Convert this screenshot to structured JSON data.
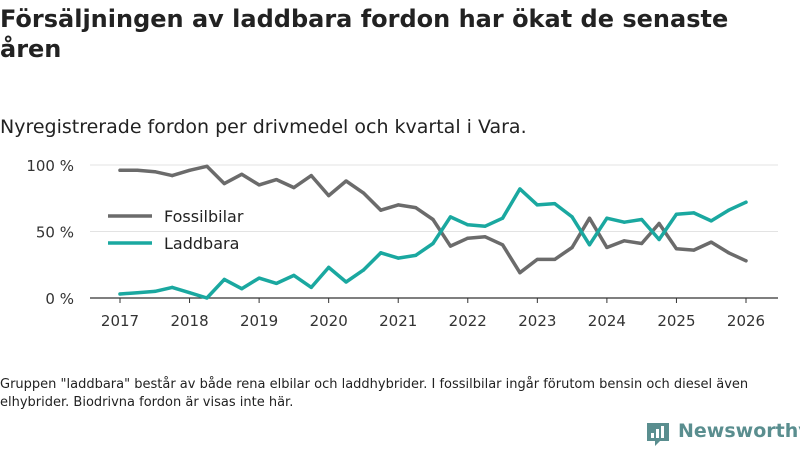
{
  "header": {
    "title": "Försäljningen av laddbara fordon har ökat de senaste åren",
    "subtitle": "Nyregistrerade fordon per drivmedel och kvartal i Vara."
  },
  "footer": {
    "note": "Gruppen \"laddbara\" består av både rena elbilar och laddhybrider. I fossilbilar ingår förutom bensin och diesel även elhybrider. Biodrivna fordon är visas inte här.",
    "brand": "Newsworthy"
  },
  "colors": {
    "fossil": "#6b6b6b",
    "laddbara": "#1aa8a0",
    "grid": "#e3e3e3",
    "brand": "#5a8e8f"
  },
  "chart_data": {
    "type": "line",
    "title": "Försäljningen av laddbara fordon har ökat de senaste åren",
    "subtitle": "Nyregistrerade fordon per drivmedel och kvartal i Vara.",
    "xlabel": "",
    "ylabel": "",
    "ylim": [
      0,
      100
    ],
    "xlim": [
      2017,
      2026
    ],
    "yticks": [
      {
        "value": 0,
        "label": "0 %"
      },
      {
        "value": 50,
        "label": "50 %"
      },
      {
        "value": 100,
        "label": "100 %"
      }
    ],
    "xticks": [
      "2017",
      "2018",
      "2019",
      "2020",
      "2021",
      "2022",
      "2023",
      "2024",
      "2025",
      "2026"
    ],
    "legend_position": "middle-left",
    "x": [
      2017.0,
      2017.25,
      2017.5,
      2017.75,
      2018.0,
      2018.25,
      2018.5,
      2018.75,
      2019.0,
      2019.25,
      2019.5,
      2019.75,
      2020.0,
      2020.25,
      2020.5,
      2020.75,
      2021.0,
      2021.25,
      2021.5,
      2021.75,
      2022.0,
      2022.25,
      2022.5,
      2022.75,
      2023.0,
      2023.25,
      2023.5,
      2023.75,
      2024.0,
      2024.25,
      2024.5,
      2024.75,
      2025.0,
      2025.25,
      2025.5,
      2025.75,
      2026.0
    ],
    "series": [
      {
        "name": "Fossilbilar",
        "color": "#6b6b6b",
        "values": [
          96,
          96,
          95,
          92,
          96,
          99,
          86,
          93,
          85,
          89,
          83,
          92,
          77,
          88,
          79,
          66,
          70,
          68,
          59,
          39,
          45,
          46,
          40,
          19,
          29,
          29,
          38,
          60,
          38,
          43,
          41,
          56,
          37,
          36,
          42,
          34,
          28
        ]
      },
      {
        "name": "Laddbara",
        "color": "#1aa8a0",
        "values": [
          3,
          4,
          5,
          8,
          4,
          0,
          14,
          7,
          15,
          11,
          17,
          8,
          23,
          12,
          21,
          34,
          30,
          32,
          41,
          61,
          55,
          54,
          60,
          82,
          70,
          71,
          61,
          40,
          60,
          57,
          59,
          44,
          63,
          64,
          58,
          66,
          72
        ]
      }
    ]
  }
}
